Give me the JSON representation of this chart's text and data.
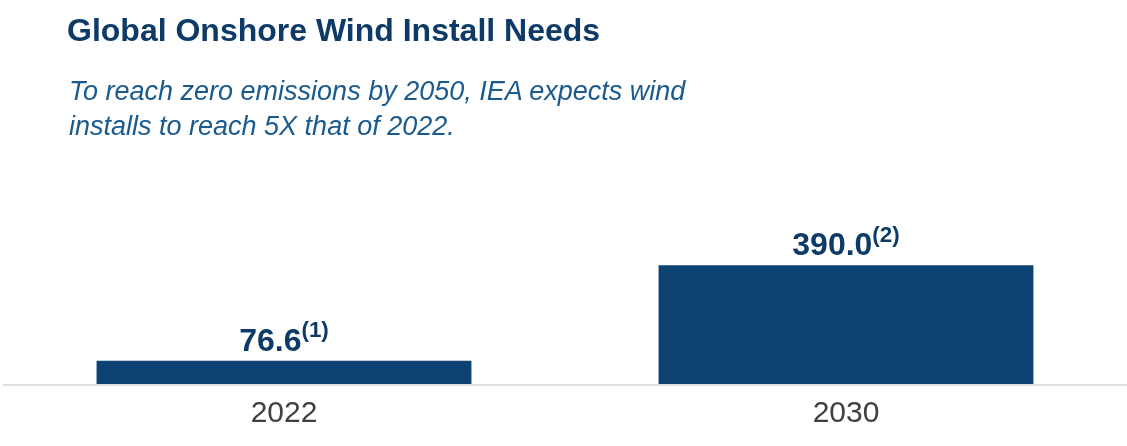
{
  "chart_data": {
    "type": "bar",
    "title": "Global Onshore Wind Install Needs",
    "subtitle": "To reach zero emissions by 2050, IEA expects wind installs to reach 5X that of 2022.",
    "categories": [
      "2022",
      "2030"
    ],
    "values": [
      76.6,
      390.0
    ],
    "value_labels": [
      "76.6$^{(1)}$",
      "390.0$^{(2)}$"
    ],
    "color": "#0e4272"
  }
}
